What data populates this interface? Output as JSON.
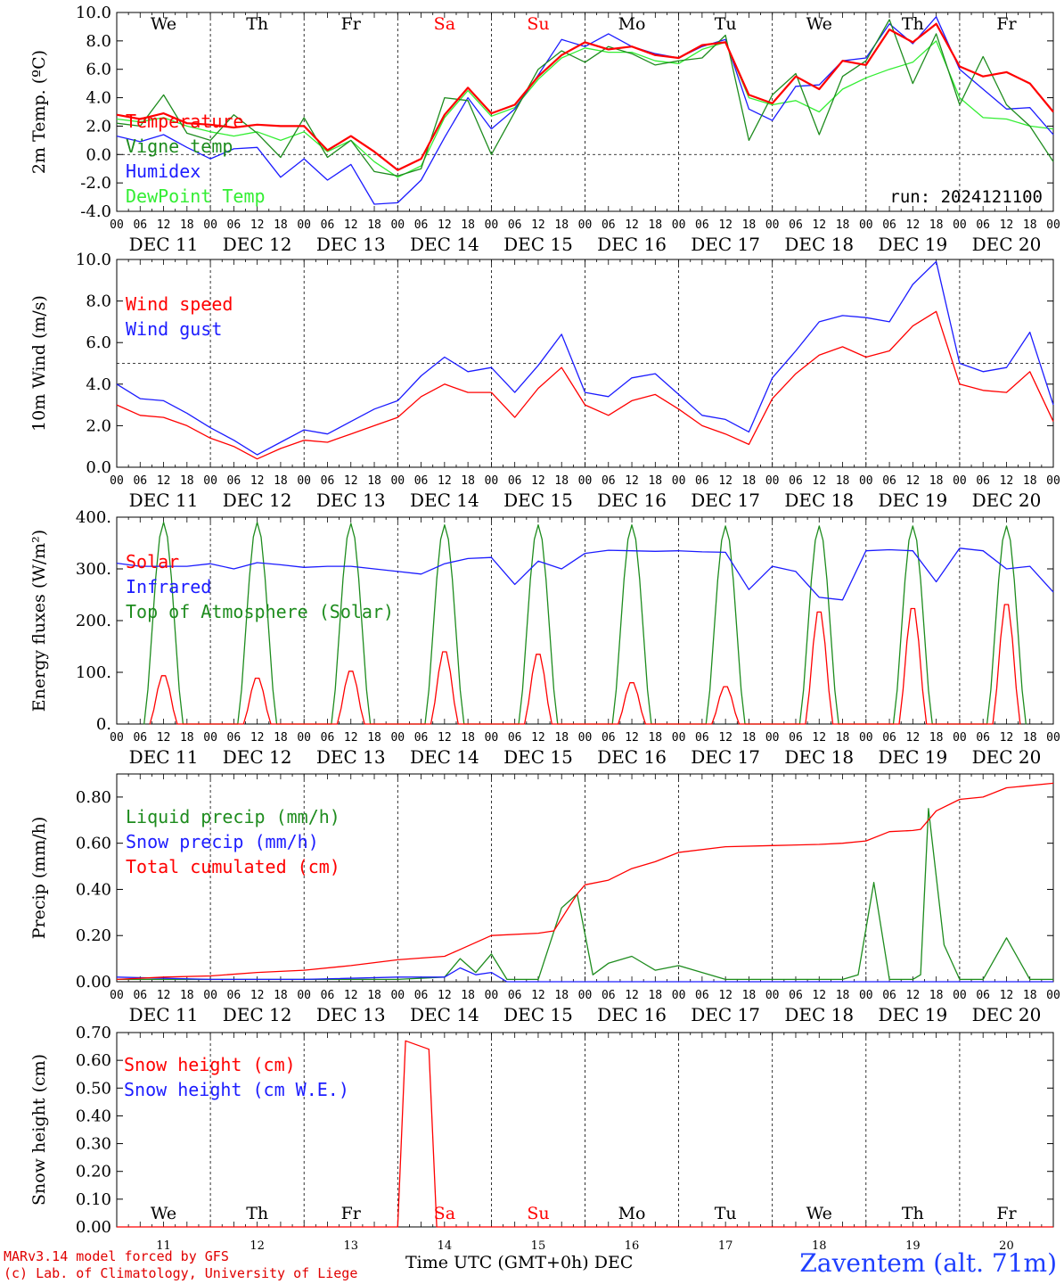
{
  "footer": {
    "model": "MARv3.14 model forced by GFS",
    "credit": "(c) Lab. of Climatology, University of Liege",
    "x_title": "Time UTC (GMT+0h)",
    "month": "DEC",
    "station": "Zaventem (alt. 71m)"
  },
  "colors": {
    "red": "#ff0000",
    "green": "#1e8c1e",
    "blue": "#1c1cff",
    "lime": "#33ee33",
    "black": "#000000"
  },
  "chart_data": [
    {
      "type": "line",
      "ylabel": "2m Temp. (ºC)",
      "ylim": [
        -4,
        10
      ],
      "yticks": [
        "-4.0",
        "-2.0",
        "0.0",
        "2.0",
        "4.0",
        "6.0",
        "8.0",
        "10.0"
      ],
      "days": [
        "We",
        "Th",
        "Fr",
        "Sa",
        "Su",
        "Mo",
        "Tu",
        "We",
        "Th",
        "Fr"
      ],
      "dates": [
        "DEC 11",
        "DEC 12",
        "DEC 13",
        "DEC 14",
        "DEC 15",
        "DEC 16",
        "DEC 17",
        "DEC 18",
        "DEC 19",
        "DEC 20"
      ],
      "hour_ticks": [
        "00",
        "06",
        "12",
        "18"
      ],
      "run_label": "run: 2024121100",
      "ref_line": 0,
      "x_unit": "hours since 2024-12-11 00 UTC",
      "series": [
        {
          "name": "Temperature",
          "color": "red",
          "x": [
            0,
            6,
            12,
            18,
            24,
            30,
            36,
            42,
            48,
            54,
            60,
            66,
            72,
            78,
            84,
            90,
            96,
            102,
            108,
            114,
            120,
            126,
            132,
            138,
            144,
            150,
            156,
            162,
            168,
            174,
            180,
            186,
            192,
            198,
            204,
            210,
            216,
            222,
            228,
            234,
            240
          ],
          "y": [
            2.8,
            2.5,
            2.9,
            2.2,
            2.1,
            1.9,
            2.1,
            2.0,
            2.0,
            0.3,
            1.3,
            0.2,
            -1.1,
            -0.3,
            2.8,
            4.7,
            2.9,
            3.5,
            5.5,
            7.0,
            7.9,
            7.4,
            7.6,
            7.0,
            6.8,
            7.7,
            7.9,
            4.2,
            3.6,
            5.5,
            4.6,
            6.6,
            6.3,
            8.8,
            7.9,
            9.2,
            6.2,
            5.5,
            5.8,
            5.0,
            3.0
          ]
        },
        {
          "name": "Vigne temp",
          "color": "green",
          "x": [
            0,
            6,
            12,
            18,
            24,
            30,
            36,
            42,
            48,
            54,
            60,
            66,
            72,
            78,
            84,
            90,
            96,
            102,
            108,
            114,
            120,
            126,
            132,
            138,
            144,
            150,
            156,
            162,
            168,
            174,
            180,
            186,
            192,
            198,
            204,
            210,
            216,
            222,
            228,
            234,
            240
          ],
          "y": [
            2.2,
            2.0,
            4.2,
            1.5,
            1.0,
            2.8,
            1.5,
            -0.2,
            2.6,
            -0.2,
            1.0,
            -1.2,
            -1.5,
            -1.0,
            4.0,
            3.8,
            0.0,
            3.0,
            6.0,
            7.3,
            6.5,
            7.6,
            7.1,
            6.3,
            6.6,
            6.8,
            8.4,
            1.0,
            4.2,
            5.7,
            1.4,
            5.5,
            6.6,
            9.5,
            5.0,
            8.5,
            3.5,
            6.9,
            3.5,
            2.0,
            -0.5
          ]
        },
        {
          "name": "Humidex",
          "color": "blue",
          "x": [
            0,
            6,
            12,
            18,
            24,
            30,
            36,
            42,
            48,
            54,
            60,
            66,
            72,
            78,
            84,
            90,
            96,
            102,
            108,
            114,
            120,
            126,
            132,
            138,
            144,
            150,
            156,
            162,
            168,
            174,
            180,
            186,
            192,
            198,
            204,
            210,
            216,
            222,
            228,
            234,
            240
          ],
          "y": [
            1.3,
            0.9,
            1.4,
            0.5,
            -0.3,
            0.4,
            0.5,
            -1.6,
            -0.3,
            -1.8,
            -0.7,
            -3.5,
            -3.4,
            -1.8,
            1.2,
            4.0,
            1.8,
            3.2,
            5.6,
            8.1,
            7.6,
            8.5,
            7.6,
            7.1,
            6.8,
            7.6,
            8.1,
            3.2,
            2.4,
            4.8,
            4.9,
            6.6,
            6.8,
            9.2,
            7.8,
            9.7,
            6.0,
            4.6,
            3.2,
            3.3,
            1.4
          ]
        },
        {
          "name": "DewPoint Temp",
          "color": "lime",
          "x": [
            0,
            6,
            12,
            18,
            24,
            30,
            36,
            42,
            48,
            54,
            60,
            66,
            72,
            78,
            84,
            90,
            96,
            102,
            108,
            114,
            120,
            126,
            132,
            138,
            144,
            150,
            156,
            162,
            168,
            174,
            180,
            186,
            192,
            198,
            204,
            210,
            216,
            222,
            228,
            234,
            240
          ],
          "y": [
            2.5,
            2.3,
            2.6,
            2.0,
            1.6,
            1.3,
            1.6,
            1.0,
            1.6,
            0.2,
            1.0,
            -0.5,
            -1.6,
            -0.8,
            2.6,
            4.5,
            2.7,
            3.3,
            5.3,
            6.8,
            7.5,
            7.2,
            7.2,
            6.6,
            6.4,
            7.4,
            7.9,
            4.0,
            3.5,
            3.8,
            3.0,
            4.6,
            5.4,
            6.0,
            6.5,
            8.0,
            4.0,
            2.6,
            2.5,
            2.0,
            1.8
          ]
        }
      ]
    },
    {
      "type": "line",
      "ylabel": "10m Wind (m/s)",
      "ylim": [
        0,
        10
      ],
      "yticks": [
        "0.0",
        "2.0",
        "4.0",
        "6.0",
        "8.0",
        "10.0"
      ],
      "dates": [
        "DEC 11",
        "DEC 12",
        "DEC 13",
        "DEC 14",
        "DEC 15",
        "DEC 16",
        "DEC 17",
        "DEC 18",
        "DEC 19",
        "DEC 20"
      ],
      "hour_ticks": [
        "00",
        "06",
        "12",
        "18"
      ],
      "ref_line": 5,
      "x_unit": "hours since 2024-12-11 00 UTC",
      "series": [
        {
          "name": "Wind speed",
          "color": "red",
          "x": [
            0,
            6,
            12,
            18,
            24,
            30,
            36,
            42,
            48,
            54,
            60,
            66,
            72,
            78,
            84,
            90,
            96,
            102,
            108,
            114,
            120,
            126,
            132,
            138,
            144,
            150,
            156,
            162,
            168,
            174,
            180,
            186,
            192,
            198,
            204,
            210,
            216,
            222,
            228,
            234,
            240
          ],
          "y": [
            3.0,
            2.5,
            2.4,
            2.0,
            1.4,
            1.0,
            0.4,
            0.9,
            1.3,
            1.2,
            1.6,
            2.0,
            2.4,
            3.4,
            4.0,
            3.6,
            3.6,
            2.4,
            3.8,
            4.8,
            3.0,
            2.5,
            3.2,
            3.5,
            2.8,
            2.0,
            1.6,
            1.1,
            3.3,
            4.5,
            5.4,
            5.8,
            5.3,
            5.6,
            6.8,
            7.5,
            4.0,
            3.7,
            3.6,
            4.6,
            2.2
          ]
        },
        {
          "name": "Wind gust",
          "color": "blue",
          "x": [
            0,
            6,
            12,
            18,
            24,
            30,
            36,
            42,
            48,
            54,
            60,
            66,
            72,
            78,
            84,
            90,
            96,
            102,
            108,
            114,
            120,
            126,
            132,
            138,
            144,
            150,
            156,
            162,
            168,
            174,
            180,
            186,
            192,
            198,
            204,
            210,
            216,
            222,
            228,
            234,
            240
          ],
          "y": [
            4.0,
            3.3,
            3.2,
            2.6,
            1.9,
            1.3,
            0.6,
            1.2,
            1.8,
            1.6,
            2.2,
            2.8,
            3.2,
            4.4,
            5.3,
            4.6,
            4.8,
            3.6,
            4.9,
            6.4,
            3.6,
            3.4,
            4.3,
            4.5,
            3.5,
            2.5,
            2.3,
            1.7,
            4.3,
            5.6,
            7.0,
            7.3,
            7.2,
            7.0,
            8.8,
            9.9,
            5.0,
            4.6,
            4.8,
            6.5,
            3.0
          ]
        }
      ]
    },
    {
      "type": "line",
      "ylabel": "Energy fluxes (W/m²)",
      "ylim": [
        0,
        400
      ],
      "yticks": [
        "0.",
        "100.",
        "200.",
        "300.",
        "400."
      ],
      "dates": [
        "DEC 11",
        "DEC 12",
        "DEC 13",
        "DEC 14",
        "DEC 15",
        "DEC 16",
        "DEC 17",
        "DEC 18",
        "DEC 19",
        "DEC 20"
      ],
      "hour_ticks": [
        "00",
        "06",
        "12",
        "18"
      ],
      "x_unit": "hours since 2024-12-11 00 UTC",
      "series": [
        {
          "name": "Solar",
          "color": "red",
          "peak_hour": 12,
          "peaks": [
            97,
            92,
            106,
            145,
            140,
            83,
            75,
            225,
            232,
            240
          ]
        },
        {
          "name": "Infrared",
          "color": "blue",
          "x": [
            0,
            6,
            12,
            18,
            24,
            30,
            36,
            42,
            48,
            54,
            60,
            66,
            72,
            78,
            84,
            90,
            96,
            102,
            108,
            114,
            120,
            126,
            132,
            138,
            144,
            150,
            156,
            162,
            168,
            174,
            180,
            186,
            192,
            198,
            204,
            210,
            216,
            222,
            228,
            234,
            240
          ],
          "y": [
            311,
            305,
            305,
            305,
            310,
            300,
            312,
            308,
            303,
            305,
            305,
            300,
            295,
            290,
            310,
            320,
            322,
            270,
            315,
            300,
            330,
            336,
            335,
            334,
            335,
            333,
            332,
            260,
            305,
            295,
            245,
            240,
            335,
            337,
            335,
            275,
            340,
            335,
            300,
            305,
            255
          ]
        },
        {
          "name": "Top of Atmosphere (Solar)",
          "color": "green",
          "peak_hour": 12,
          "peaks": [
            390,
            390,
            388,
            385,
            385,
            385,
            383,
            383,
            383,
            383
          ]
        }
      ]
    },
    {
      "type": "line",
      "ylabel": "Precip (mm/h)",
      "ylim": [
        0,
        0.9
      ],
      "yticks": [
        "0.00",
        "0.20",
        "0.40",
        "0.60",
        "0.80"
      ],
      "dates": [
        "DEC 11",
        "DEC 12",
        "DEC 13",
        "DEC 14",
        "DEC 15",
        "DEC 16",
        "DEC 17",
        "DEC 18",
        "DEC 19",
        "DEC 20"
      ],
      "hour_ticks": [
        "00",
        "06",
        "12",
        "18"
      ],
      "x_unit": "hours since 2024-12-11 00 UTC",
      "series": [
        {
          "name": "Liquid precip (mm/h)",
          "color": "green",
          "x": [
            0,
            12,
            24,
            36,
            48,
            60,
            72,
            84,
            88,
            92,
            96,
            100,
            108,
            114,
            118,
            122,
            126,
            132,
            138,
            144,
            156,
            168,
            180,
            186,
            190,
            194,
            198,
            204,
            206,
            208,
            212,
            216,
            222,
            228,
            234,
            240
          ],
          "y": [
            0.01,
            0.01,
            0.01,
            0.01,
            0.01,
            0.01,
            0.01,
            0.02,
            0.1,
            0.04,
            0.12,
            0.01,
            0.01,
            0.32,
            0.38,
            0.03,
            0.08,
            0.11,
            0.05,
            0.07,
            0.01,
            0.01,
            0.01,
            0.01,
            0.03,
            0.43,
            0.01,
            0.01,
            0.03,
            0.75,
            0.16,
            0.01,
            0.01,
            0.19,
            0.01,
            0.01
          ]
        },
        {
          "name": "Snow precip (mm/h)",
          "color": "blue",
          "x": [
            0,
            24,
            48,
            72,
            84,
            88,
            92,
            96,
            100,
            120,
            240
          ],
          "y": [
            0.02,
            0.01,
            0.01,
            0.02,
            0.02,
            0.06,
            0.03,
            0.04,
            0.0,
            0.0,
            0.0
          ]
        },
        {
          "name": "Total cumulated (cm)",
          "color": "red",
          "x": [
            0,
            12,
            24,
            36,
            48,
            60,
            72,
            84,
            88,
            96,
            108,
            112,
            118,
            120,
            126,
            132,
            138,
            144,
            156,
            168,
            180,
            186,
            192,
            198,
            204,
            206,
            210,
            216,
            222,
            228,
            240
          ],
          "y": [
            0.01,
            0.02,
            0.025,
            0.04,
            0.05,
            0.07,
            0.095,
            0.11,
            0.14,
            0.2,
            0.21,
            0.22,
            0.38,
            0.42,
            0.44,
            0.49,
            0.52,
            0.56,
            0.585,
            0.59,
            0.595,
            0.6,
            0.61,
            0.65,
            0.655,
            0.66,
            0.74,
            0.79,
            0.8,
            0.84,
            0.86
          ]
        }
      ]
    },
    {
      "type": "line",
      "ylabel": "Snow height (cm)",
      "ylim": [
        0,
        0.7
      ],
      "yticks": [
        "0.00",
        "0.10",
        "0.20",
        "0.30",
        "0.40",
        "0.50",
        "0.60",
        "0.70"
      ],
      "days": [
        "We",
        "Th",
        "Fr",
        "Sa",
        "Su",
        "Mo",
        "Tu",
        "We",
        "Th",
        "Fr"
      ],
      "day_numbers": [
        "11",
        "12",
        "13",
        "14",
        "15",
        "16",
        "17",
        "18",
        "19",
        "20"
      ],
      "x_unit": "hours since 2024-12-11 00 UTC",
      "series": [
        {
          "name": "Snow height (cm)",
          "color": "red",
          "x": [
            0,
            72,
            74,
            80,
            82,
            240
          ],
          "y": [
            0,
            0,
            0.67,
            0.64,
            0,
            0
          ]
        },
        {
          "name": "Snow height (cm W.E.)",
          "color": "blue",
          "x": [],
          "y": []
        }
      ]
    }
  ]
}
